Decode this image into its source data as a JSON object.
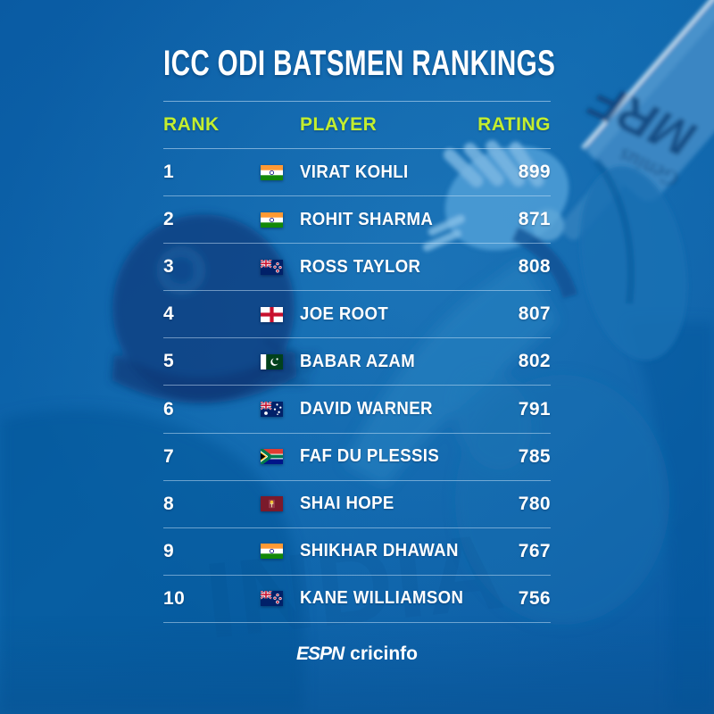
{
  "title": "ICC ODI BATSMEN RANKINGS",
  "columns": [
    "RANK",
    "PLAYER",
    "RATING"
  ],
  "rows": [
    {
      "rank": "1",
      "flag": "india",
      "player": "VIRAT KOHLI",
      "rating": "899"
    },
    {
      "rank": "2",
      "flag": "india",
      "player": "ROHIT SHARMA",
      "rating": "871"
    },
    {
      "rank": "3",
      "flag": "newzealand",
      "player": "ROSS TAYLOR",
      "rating": "808"
    },
    {
      "rank": "4",
      "flag": "england",
      "player": "JOE ROOT",
      "rating": "807"
    },
    {
      "rank": "5",
      "flag": "pakistan",
      "player": "BABAR AZAM",
      "rating": "802"
    },
    {
      "rank": "6",
      "flag": "australia",
      "player": "DAVID WARNER",
      "rating": "791"
    },
    {
      "rank": "7",
      "flag": "southafrica",
      "player": "FAF DU PLESSIS",
      "rating": "785"
    },
    {
      "rank": "8",
      "flag": "westindies",
      "player": "SHAI HOPE",
      "rating": "780"
    },
    {
      "rank": "9",
      "flag": "india",
      "player": "SHIKHAR DHAWAN",
      "rating": "767"
    },
    {
      "rank": "10",
      "flag": "newzealand",
      "player": "KANE WILLIAMSON",
      "rating": "756"
    }
  ],
  "footer": {
    "brand_espn": "ESPN",
    "brand_cricinfo": "cricinfo"
  },
  "background": {
    "bat_brand": "MRF",
    "bat_sub": "Genius"
  },
  "colors": {
    "background": "#0d63a8",
    "header_text": "#c3ee2f",
    "row_text": "#ffffff",
    "divider": "#9cc6e8"
  },
  "chart_data": {
    "type": "table",
    "title": "ICC ODI BATSMEN RANKINGS",
    "columns": [
      "RANK",
      "PLAYER",
      "RATING"
    ],
    "rows": [
      [
        1,
        "Virat Kohli",
        899
      ],
      [
        2,
        "Rohit Sharma",
        871
      ],
      [
        3,
        "Ross Taylor",
        808
      ],
      [
        4,
        "Joe Root",
        807
      ],
      [
        5,
        "Babar Azam",
        802
      ],
      [
        6,
        "David Warner",
        791
      ],
      [
        7,
        "Faf du Plessis",
        785
      ],
      [
        8,
        "Shai Hope",
        780
      ],
      [
        9,
        "Shikhar Dhawan",
        767
      ],
      [
        10,
        "Kane Williamson",
        756
      ]
    ]
  }
}
